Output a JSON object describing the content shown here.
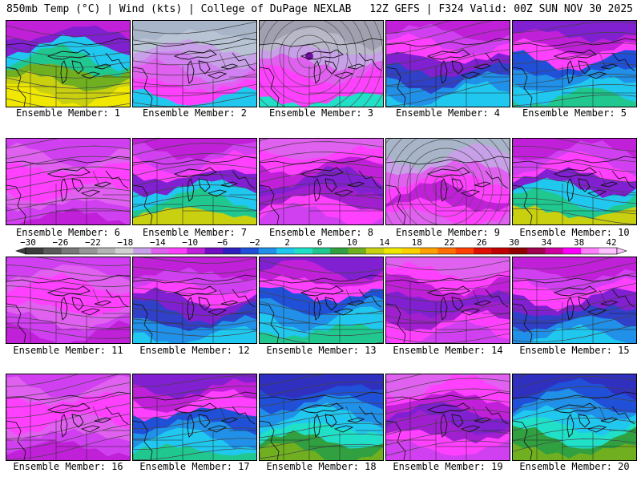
{
  "header": {
    "left": "850mb Temp (°C) | Wind (kts) | College of DuPage NEXLAB",
    "right": "12Z GEFS | F324 Valid: 00Z SUN NOV 30 2025"
  },
  "colors": {
    "scale": [
      "#3c3c3c",
      "#5a5a5a",
      "#787878",
      "#969696",
      "#b4b4b4",
      "#d2d2d2",
      "#c8a0e8",
      "#e060f0",
      "#ff40ff",
      "#c020d8",
      "#7010c0",
      "#3020c0",
      "#2050d8",
      "#2090e8",
      "#20c8f0",
      "#20e0c8",
      "#20c890",
      "#30a040",
      "#70b020",
      "#c8d010",
      "#f0e800",
      "#ffd000",
      "#ffa000",
      "#ff7000",
      "#ff4000",
      "#e01000",
      "#c00000",
      "#900000",
      "#a00050",
      "#d000a0",
      "#ff00ff",
      "#ff80ff",
      "#ffc0ff"
    ]
  },
  "colorbar": {
    "labels": [
      "−30",
      "−26",
      "−22",
      "−18",
      "−14",
      "−10",
      "−6",
      "−2",
      "2",
      "6",
      "10",
      "14",
      "18",
      "22",
      "26",
      "30",
      "34",
      "38",
      "42"
    ]
  },
  "members": [
    {
      "label": "Ensemble Member: 1",
      "style": "warm-west"
    },
    {
      "label": "Ensemble Member: 2",
      "style": "cold-gray"
    },
    {
      "label": "Ensemble Member: 3",
      "style": "low-center"
    },
    {
      "label": "Ensemble Member: 4",
      "style": "cool-south"
    },
    {
      "label": "Ensemble Member: 5",
      "style": "cool-band"
    },
    {
      "label": "Ensemble Member: 6",
      "style": "magenta"
    },
    {
      "label": "Ensemble Member: 7",
      "style": "warm-se"
    },
    {
      "label": "Ensemble Member: 8",
      "style": "magenta-purple"
    },
    {
      "label": "Ensemble Member: 9",
      "style": "low-lakes"
    },
    {
      "label": "Ensemble Member: 10",
      "style": "warm-se"
    },
    {
      "label": "Ensemble Member: 11",
      "style": "magenta"
    },
    {
      "label": "Ensemble Member: 12",
      "style": "cool-south"
    },
    {
      "label": "Ensemble Member: 13",
      "style": "cool-band"
    },
    {
      "label": "Ensemble Member: 14",
      "style": "magenta-purple"
    },
    {
      "label": "Ensemble Member: 15",
      "style": "cool-south"
    },
    {
      "label": "Ensemble Member: 16",
      "style": "magenta"
    },
    {
      "label": "Ensemble Member: 17",
      "style": "cool-band"
    },
    {
      "label": "Ensemble Member: 18",
      "style": "warm-south"
    },
    {
      "label": "Ensemble Member: 19",
      "style": "magenta-purple"
    },
    {
      "label": "Ensemble Member: 20",
      "style": "warm-south"
    }
  ]
}
